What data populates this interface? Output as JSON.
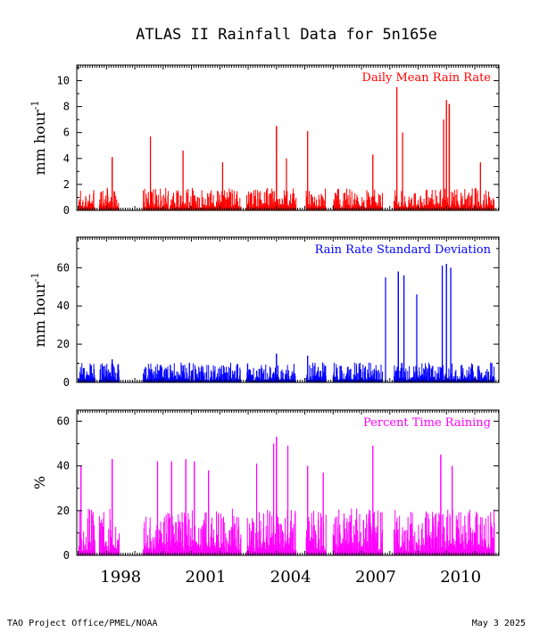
{
  "figure": {
    "title": "ATLAS II Rainfall Data for 5n165e",
    "footer_left": "TAO Project Office/PMEL/NOAA",
    "footer_right": "May  3 2025"
  },
  "colors": {
    "daily_mean": "#ff0000",
    "std_dev": "#0000ff",
    "percent_time": "#ff00ff",
    "axes": "#000000"
  },
  "chart_data": [
    {
      "type": "bar",
      "title": "Daily Mean Rain Rate",
      "ylabel": "mm hour",
      "ylabel_sup": "-1",
      "ylim": [
        0,
        11.2
      ],
      "yticks": [
        0,
        2,
        4,
        6,
        8,
        10
      ],
      "xlim": [
        1996.95,
        2011.85
      ],
      "xticks": [
        1998,
        2001,
        2004,
        2007,
        2010
      ],
      "typical_level": 1.0,
      "grid": false,
      "legend": "top-right",
      "color": "#ff0000",
      "segments": [
        [
          1997.0,
          1997.6
        ],
        [
          1997.75,
          1998.45
        ],
        [
          1999.3,
          2002.75
        ],
        [
          2002.95,
          2004.7
        ],
        [
          2005.05,
          2005.75
        ],
        [
          2006.0,
          2007.75
        ],
        [
          2008.15,
          2011.7
        ]
      ],
      "peaks": [
        {
          "x": 1998.2,
          "y": 4.1
        },
        {
          "x": 1999.55,
          "y": 5.7
        },
        {
          "x": 2000.7,
          "y": 4.6
        },
        {
          "x": 2002.1,
          "y": 3.7
        },
        {
          "x": 2004.0,
          "y": 6.5
        },
        {
          "x": 2004.35,
          "y": 4.0
        },
        {
          "x": 2005.1,
          "y": 6.1
        },
        {
          "x": 2007.4,
          "y": 4.3
        },
        {
          "x": 2008.25,
          "y": 9.5
        },
        {
          "x": 2008.45,
          "y": 6.0
        },
        {
          "x": 2009.9,
          "y": 7.0
        },
        {
          "x": 2010.0,
          "y": 8.5
        },
        {
          "x": 2010.1,
          "y": 8.2
        },
        {
          "x": 2011.2,
          "y": 3.7
        }
      ]
    },
    {
      "type": "bar",
      "title": "Rain Rate Standard Deviation",
      "ylabel": "mm hour",
      "ylabel_sup": "-1",
      "ylim": [
        0,
        76
      ],
      "yticks": [
        0,
        20,
        40,
        60
      ],
      "xlim": [
        1996.95,
        2011.85
      ],
      "xticks": [
        1998,
        2001,
        2004,
        2007,
        2010
      ],
      "typical_level": 6,
      "grid": false,
      "legend": "top-right",
      "color": "#0000ff",
      "segments": [
        [
          1997.0,
          1997.6
        ],
        [
          1997.75,
          1998.45
        ],
        [
          1999.3,
          2002.75
        ],
        [
          2002.95,
          2004.7
        ],
        [
          2005.05,
          2005.75
        ],
        [
          2006.0,
          2007.75
        ],
        [
          2008.15,
          2011.7
        ]
      ],
      "peaks": [
        {
          "x": 1998.2,
          "y": 12
        },
        {
          "x": 2004.0,
          "y": 15
        },
        {
          "x": 2005.1,
          "y": 14
        },
        {
          "x": 2007.85,
          "y": 55
        },
        {
          "x": 2008.3,
          "y": 58
        },
        {
          "x": 2008.5,
          "y": 56
        },
        {
          "x": 2008.95,
          "y": 46
        },
        {
          "x": 2009.85,
          "y": 61
        },
        {
          "x": 2010.0,
          "y": 62
        },
        {
          "x": 2010.15,
          "y": 60
        }
      ]
    },
    {
      "type": "bar",
      "title": "Percent Time Raining",
      "ylabel": "%",
      "ylim": [
        0,
        65
      ],
      "yticks": [
        0,
        20,
        40,
        60
      ],
      "xlim": [
        1996.95,
        2011.85
      ],
      "xticks": [
        1998,
        2001,
        2004,
        2007,
        2010
      ],
      "typical_level": 12,
      "grid": false,
      "legend": "top-right",
      "color": "#ff00ff",
      "segments": [
        [
          1997.0,
          1997.6
        ],
        [
          1997.75,
          1998.45
        ],
        [
          1999.3,
          2002.75
        ],
        [
          2002.95,
          2004.7
        ],
        [
          2005.05,
          2005.75
        ],
        [
          2006.0,
          2007.75
        ],
        [
          2008.15,
          2011.7
        ]
      ],
      "peaks": [
        {
          "x": 1997.1,
          "y": 40
        },
        {
          "x": 1998.2,
          "y": 43
        },
        {
          "x": 1999.8,
          "y": 42
        },
        {
          "x": 2000.3,
          "y": 42
        },
        {
          "x": 2000.8,
          "y": 43
        },
        {
          "x": 2001.1,
          "y": 42
        },
        {
          "x": 2001.6,
          "y": 38
        },
        {
          "x": 2003.3,
          "y": 41
        },
        {
          "x": 2003.9,
          "y": 50
        },
        {
          "x": 2004.0,
          "y": 53
        },
        {
          "x": 2004.4,
          "y": 49
        },
        {
          "x": 2005.1,
          "y": 40
        },
        {
          "x": 2005.65,
          "y": 37
        },
        {
          "x": 2007.4,
          "y": 49
        },
        {
          "x": 2009.8,
          "y": 45
        },
        {
          "x": 2010.2,
          "y": 40
        }
      ]
    }
  ]
}
